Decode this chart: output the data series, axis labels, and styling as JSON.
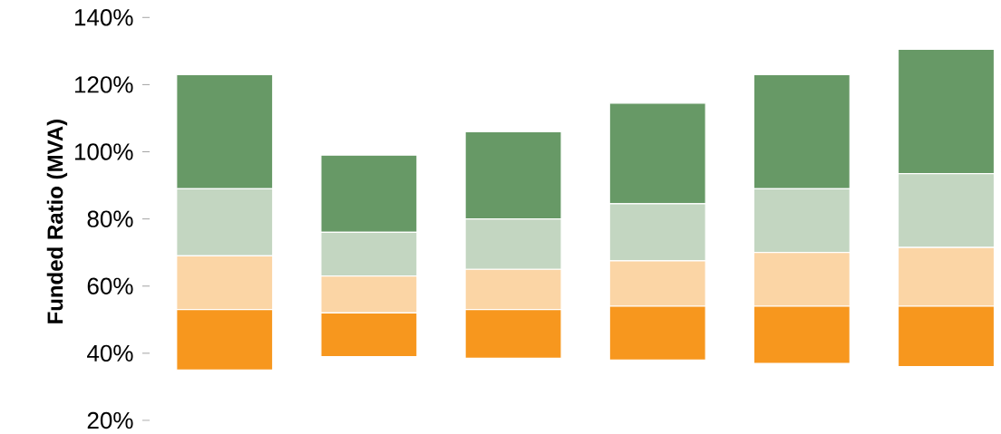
{
  "chart_data": {
    "type": "bar",
    "stacked": true,
    "ylabel": "Funded Ratio (MVA)",
    "categories": [
      null,
      null,
      null,
      null,
      null,
      null
    ],
    "series": [
      {
        "color": "#f7971e",
        "base": [
          35,
          39,
          38.5,
          38,
          37,
          36
        ],
        "values": [
          18,
          13,
          14.5,
          16,
          17,
          18
        ]
      },
      {
        "color": "#fbd5a5",
        "base": [
          53,
          52,
          53,
          54,
          54,
          54
        ],
        "values": [
          16,
          11,
          12,
          13.5,
          16,
          17.5
        ]
      },
      {
        "color": "#c3d6c1",
        "base": [
          69,
          63,
          65,
          67.5,
          70,
          71.5
        ],
        "values": [
          20,
          13,
          15,
          17,
          19,
          22
        ]
      },
      {
        "color": "#679966",
        "values": [
          34,
          23,
          26,
          30,
          34,
          37
        ]
      }
    ],
    "ylim": [
      20,
      140
    ],
    "yticks": [
      {
        "value": 20,
        "label": "20%"
      },
      {
        "value": 40,
        "label": "40%"
      },
      {
        "value": 60,
        "label": "60%"
      },
      {
        "value": 80,
        "label": "80%"
      },
      {
        "value": 100,
        "label": "100%"
      },
      {
        "value": 120,
        "label": "120%"
      },
      {
        "value": 140,
        "label": "140%"
      }
    ],
    "tick_labels": "y"
  }
}
